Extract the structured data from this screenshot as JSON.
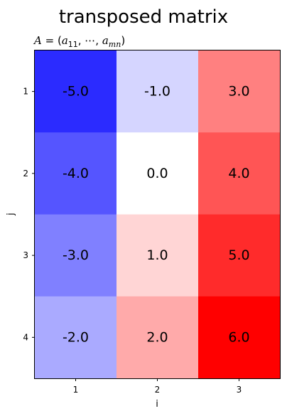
{
  "chart_data": {
    "type": "heatmap",
    "title": "transposed matrix",
    "subtitle": {
      "prefix": "A",
      "equals": " = (",
      "a1": "a",
      "a1_sub": "11",
      "sep": ", ⋯, ",
      "a2": "a",
      "a2_sub": "mn",
      "close": ")"
    },
    "xlabel": "i",
    "ylabel": "j",
    "x_categories": [
      "1",
      "2",
      "3"
    ],
    "y_categories": [
      "1",
      "2",
      "3",
      "4"
    ],
    "values": [
      [
        -5.0,
        -1.0,
        3.0
      ],
      [
        -4.0,
        0.0,
        4.0
      ],
      [
        -3.0,
        1.0,
        5.0
      ],
      [
        -2.0,
        2.0,
        6.0
      ]
    ],
    "value_labels": [
      [
        "-5.0",
        "-1.0",
        "3.0"
      ],
      [
        "-4.0",
        "0.0",
        "4.0"
      ],
      [
        "-3.0",
        "1.0",
        "5.0"
      ],
      [
        "-2.0",
        "2.0",
        "6.0"
      ]
    ],
    "colormap": "bwr",
    "color_range": [
      -6,
      6
    ],
    "colors": {
      "negative_end": "#0000ff",
      "center": "#ffffff",
      "positive_end": "#ff0000"
    },
    "grid": false,
    "legend": "none"
  }
}
